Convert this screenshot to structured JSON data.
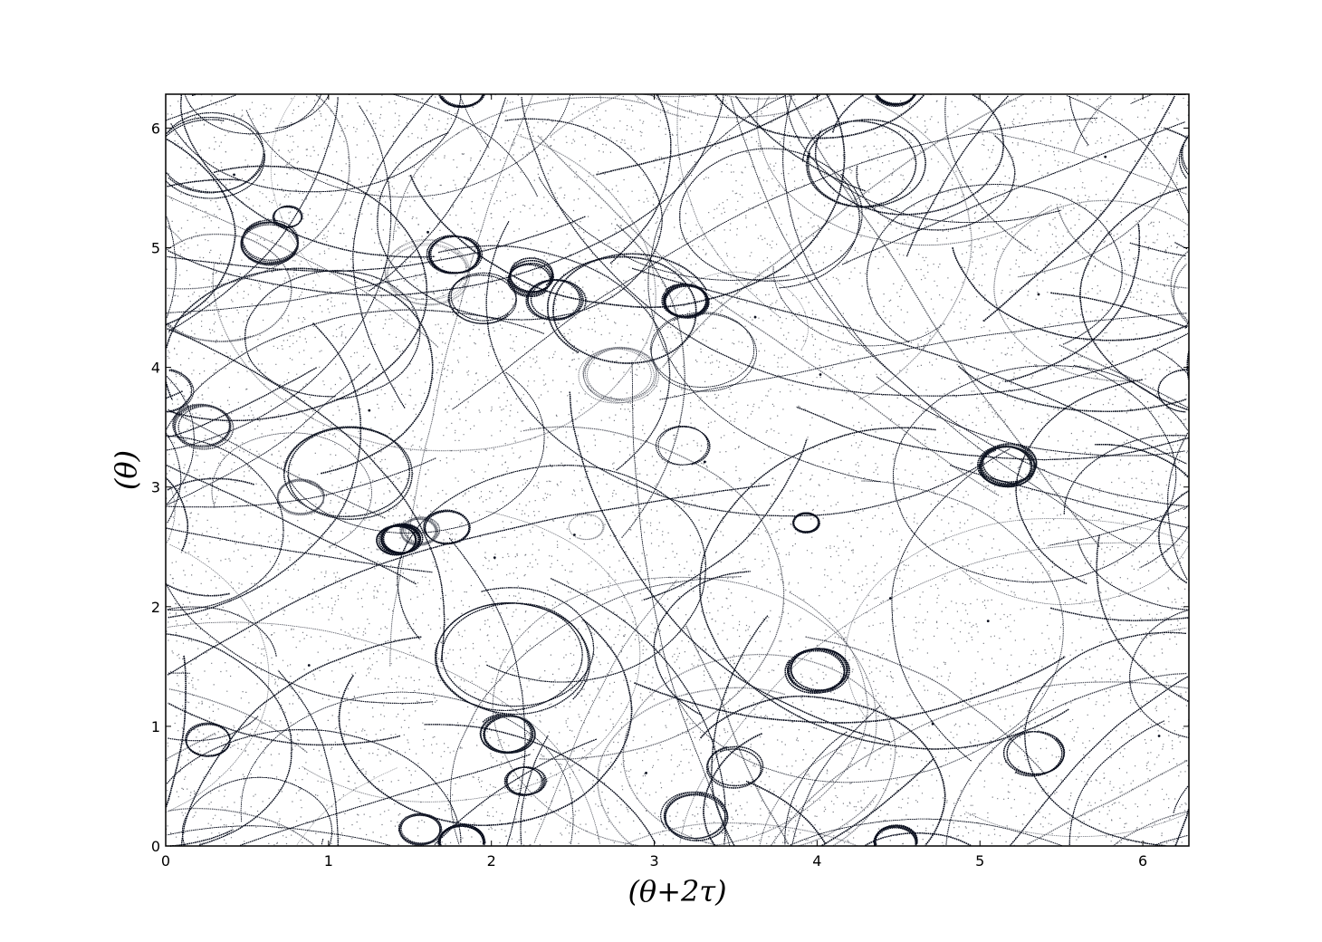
{
  "chart_data": {
    "type": "scatter",
    "title": "",
    "xlabel": "(θ+2τ)",
    "ylabel": "(θ)",
    "xlim": [
      0,
      6.283
    ],
    "ylim": [
      0,
      6.283
    ],
    "xticks": [
      0,
      1,
      2,
      3,
      4,
      5,
      6
    ],
    "yticks": [
      0,
      1,
      2,
      3,
      4,
      5,
      6
    ],
    "grid": false,
    "legend": "none",
    "marker_color": "#0a0f1e",
    "series": [
      {
        "points_description_free": true,
        "x": [
          0.42,
          1.25,
          2.51,
          3.62,
          4.71,
          5.77,
          0.88,
          2.02,
          3.31,
          4.45,
          5.36,
          6.1,
          1.61,
          2.95,
          4.02,
          5.05
        ],
        "y": [
          5.61,
          3.64,
          2.6,
          4.42,
          1.02,
          5.76,
          1.51,
          2.41,
          3.21,
          2.07,
          4.61,
          0.92,
          5.13,
          0.61,
          3.94,
          1.88
        ]
      }
    ]
  }
}
